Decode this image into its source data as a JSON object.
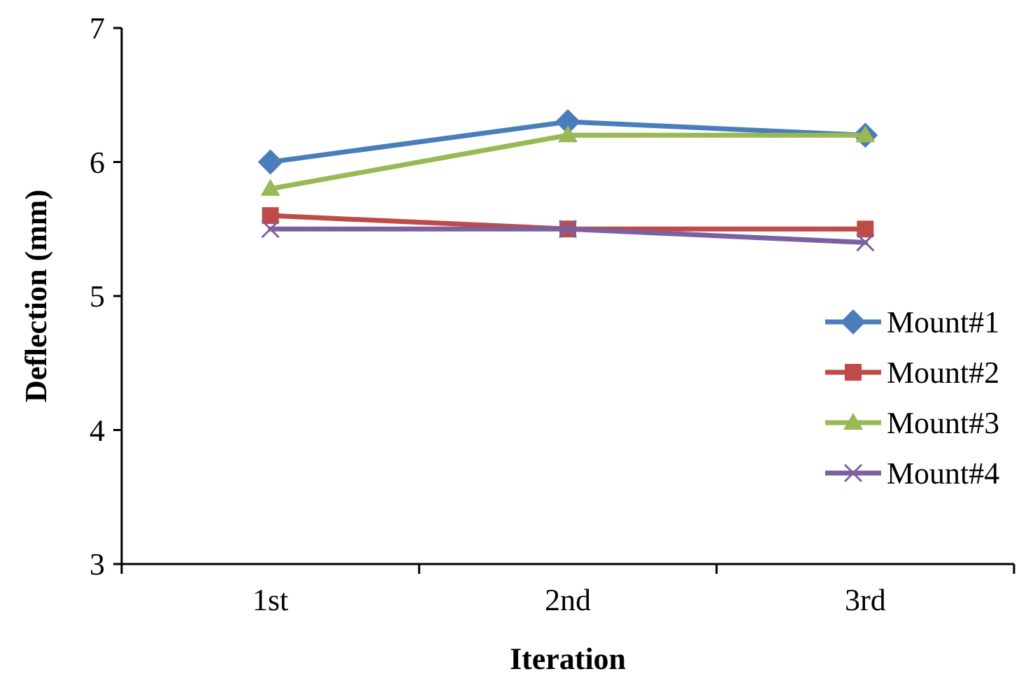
{
  "chart_data": {
    "type": "line",
    "xlabel": "Iteration",
    "ylabel": "Deflection (mm)",
    "categories": [
      "1st",
      "2nd",
      "3rd"
    ],
    "ylim": [
      3,
      7
    ],
    "yticks": [
      3,
      4,
      5,
      6,
      7
    ],
    "grid": false,
    "legend": "right",
    "line_style": "solid",
    "series": [
      {
        "name": "Mount#1",
        "color": "#4a7ebb",
        "marker": "diamond",
        "values": [
          6.0,
          6.3,
          6.2
        ]
      },
      {
        "name": "Mount#2",
        "color": "#be4b48",
        "marker": "square",
        "values": [
          5.6,
          5.5,
          5.5
        ]
      },
      {
        "name": "Mount#3",
        "color": "#98b954",
        "marker": "triangle",
        "values": [
          5.8,
          6.2,
          6.2
        ]
      },
      {
        "name": "Mount#4",
        "color": "#7d60a0",
        "marker": "cross",
        "values": [
          5.5,
          5.5,
          5.4
        ]
      }
    ]
  }
}
